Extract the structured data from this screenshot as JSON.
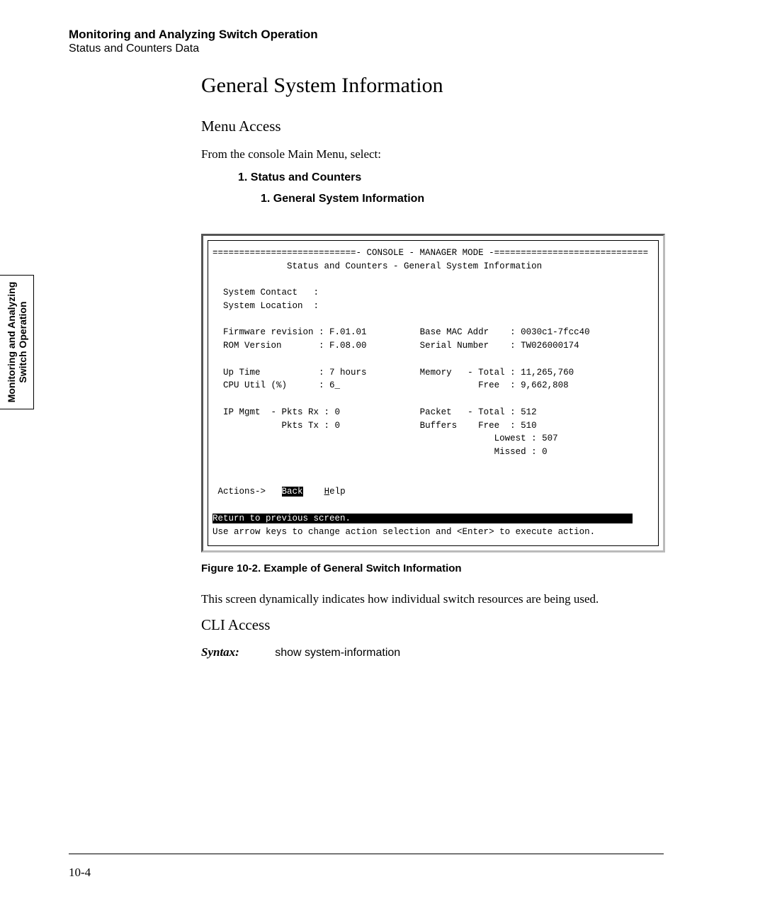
{
  "header": {
    "title": "Monitoring and Analyzing Switch Operation",
    "subtitle": "Status and Counters Data"
  },
  "side_tab": {
    "line1": "Monitoring and Analyzing",
    "line2": "Switch Operation"
  },
  "section": {
    "h1": "General System Information",
    "h2_menu": "Menu Access",
    "intro": "From the console Main Menu, select:",
    "menu1": "1. Status and Counters",
    "menu2": "1. General System Information",
    "figure_caption": "Figure 10-2. Example of General Switch Information",
    "after_figure": "This screen dynamically indicates how individual switch resources are being used.",
    "h2_cli": "CLI Access",
    "syntax_label": "Syntax:",
    "syntax_cmd": "show system-information"
  },
  "console": {
    "bar_left": "===========================-",
    "bar_mid": " CONSOLE - MANAGER MODE ",
    "bar_right": "-=============================",
    "subtitle": "Status and Counters - General System Information",
    "rows": {
      "sys_contact_l": "System Contact   :",
      "sys_location_l": "System Location  :",
      "fw_l": "Firmware revision : F.01.01",
      "mac_l": "Base MAC Addr    : 0030c1-7fcc40",
      "rom_l": "ROM Version       : F.08.00",
      "serial_l": "Serial Number    : TW026000174",
      "up_l": "Up Time           : 7 hours",
      "mem_tot_l": "Memory   - Total : 11,265,760",
      "cpu_l": "CPU Util (%)      : 6_",
      "mem_free_l": "Free  : 9,662,808",
      "ip_rx_l": "IP Mgmt  - Pkts Rx : 0",
      "pkt_tot_l": "Packet   - Total : 512",
      "ip_tx_l": "Pkts Tx : 0",
      "buf_free_l": "Buffers    Free  : 510",
      "buf_low_l": "Lowest : 507",
      "buf_miss_l": "Missed : 0"
    },
    "actions_label": "Actions->",
    "back": "Back",
    "help_first": "H",
    "help_rest": "elp",
    "status_bar": "Return to previous screen.",
    "hint": "Use arrow keys to change action selection and <Enter> to execute action."
  },
  "footer": {
    "page": "10-4"
  }
}
